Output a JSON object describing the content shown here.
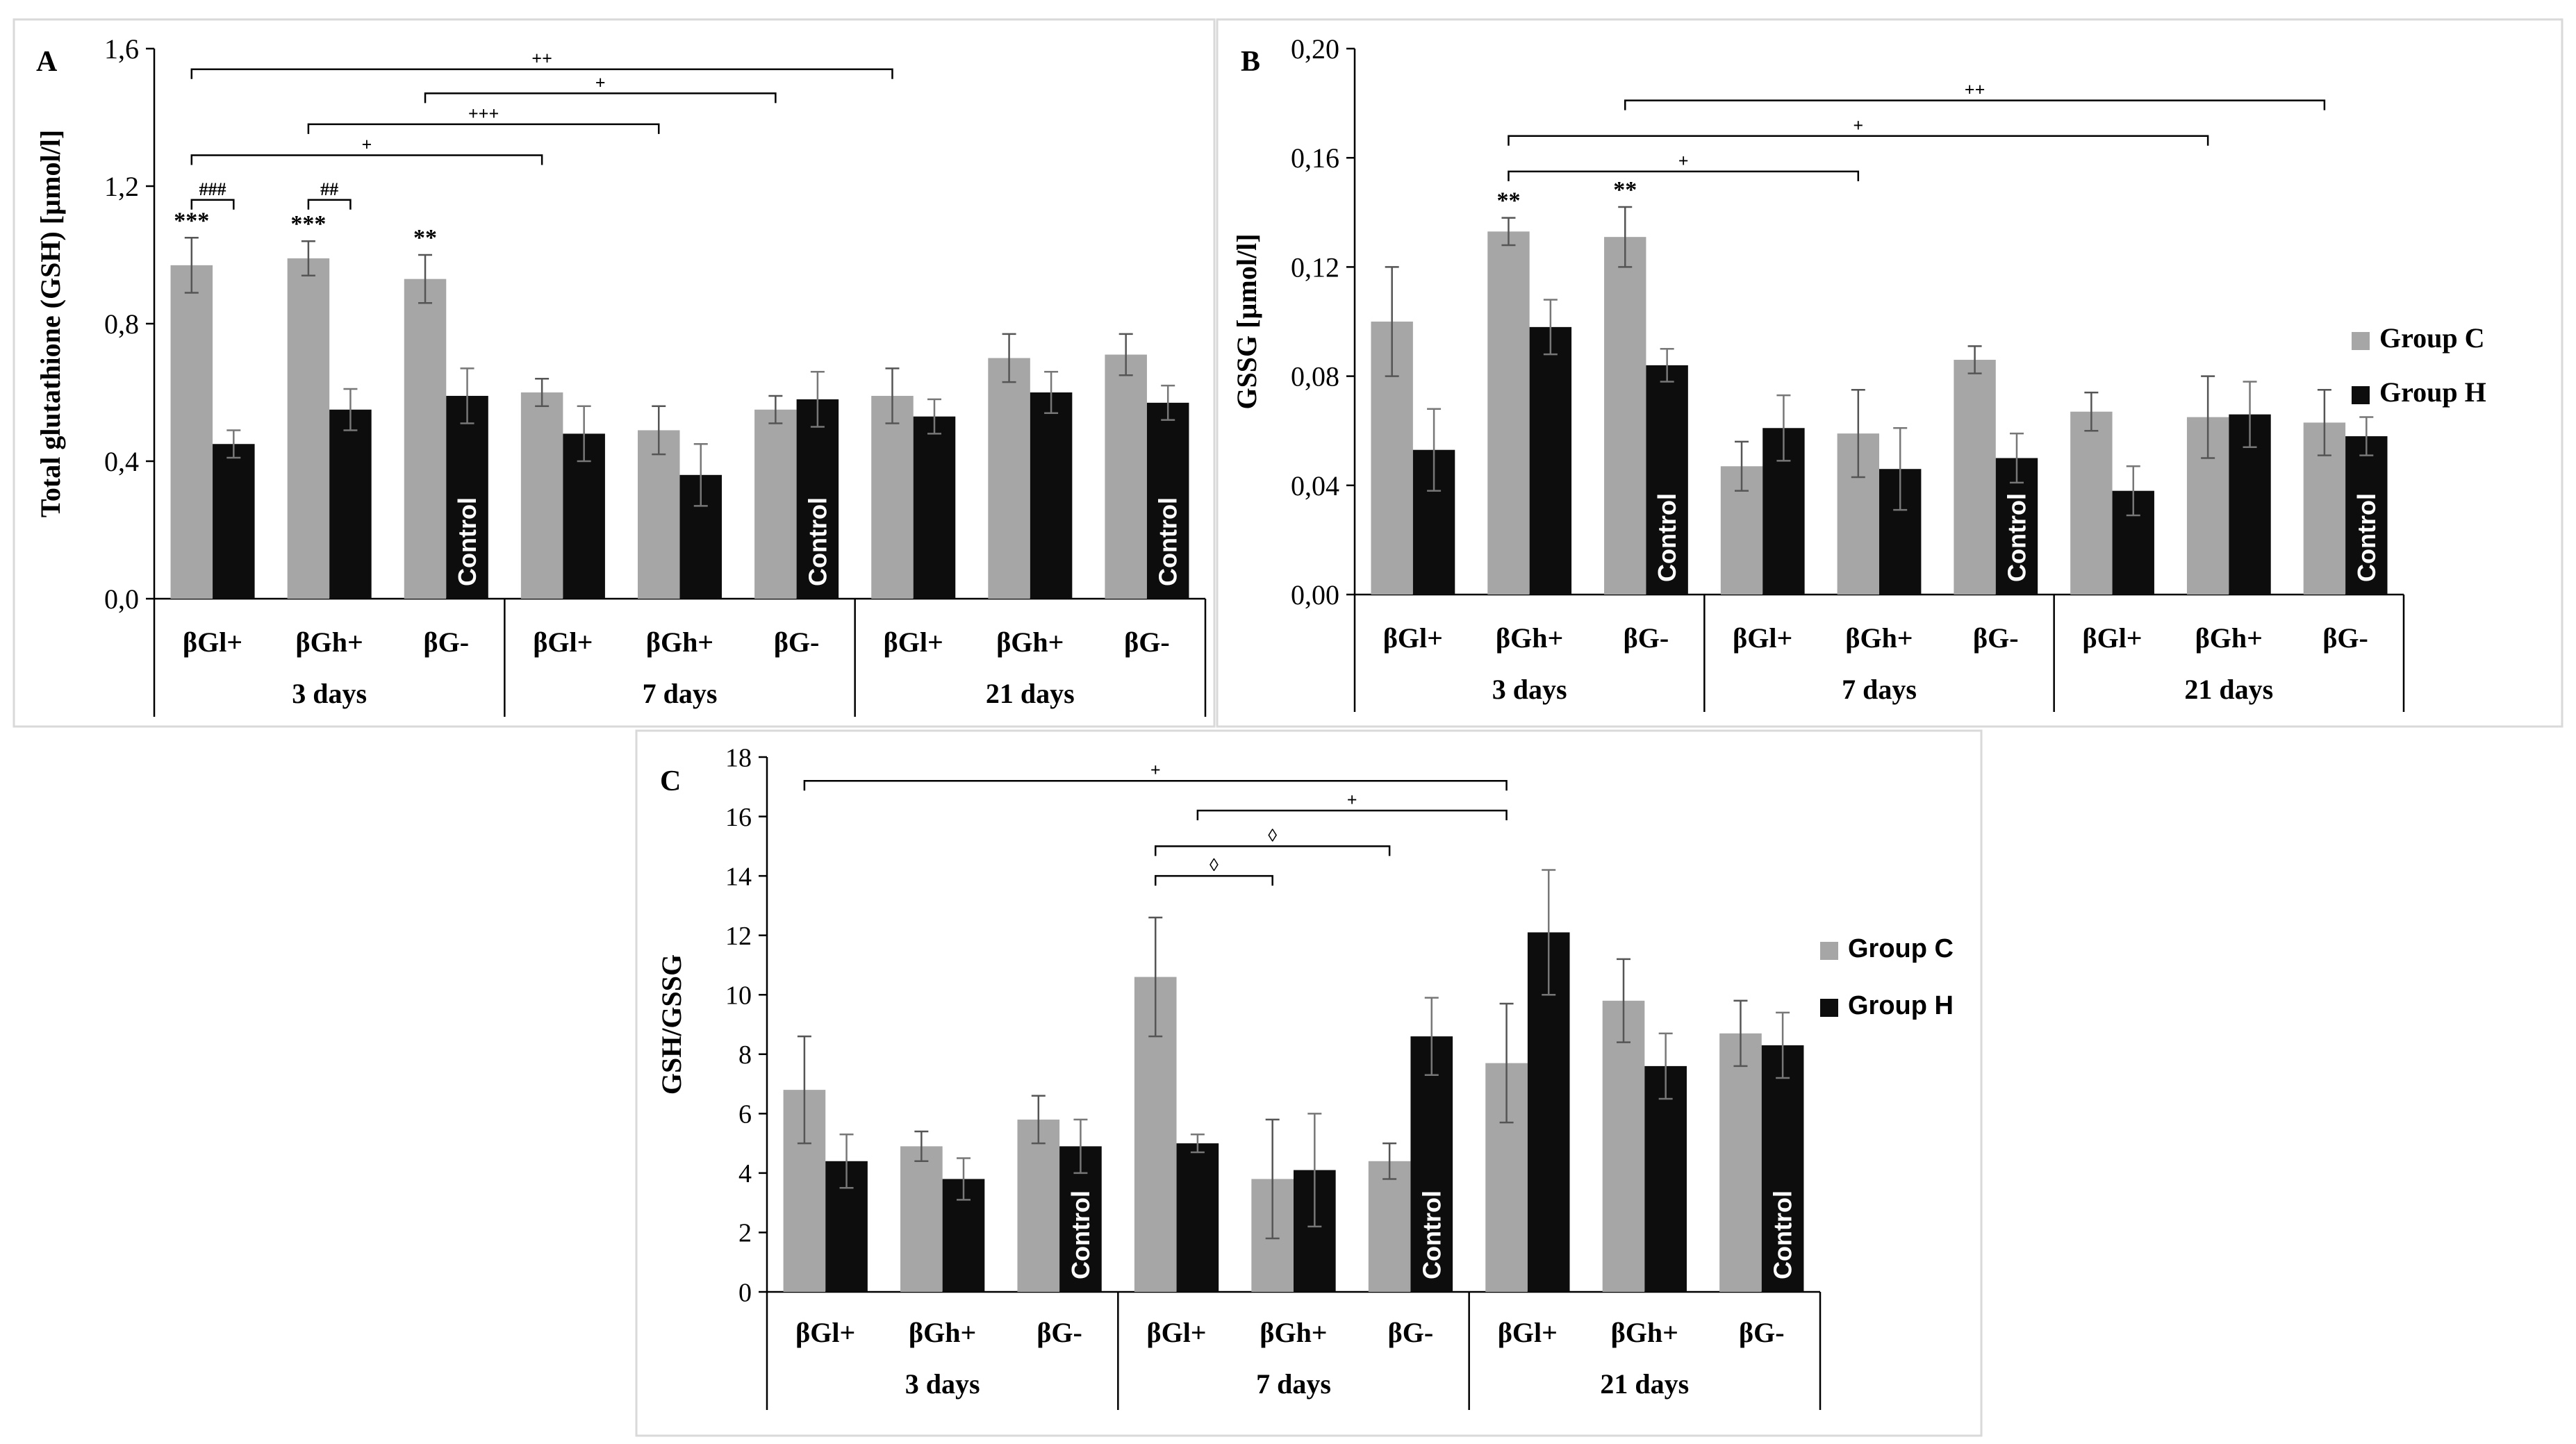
{
  "colors": {
    "group_c": "#a6a6a6",
    "group_h": "#0d0d0d",
    "axis": "#000000",
    "panel_border": "#d9d9d9"
  },
  "chart_data": [
    {
      "panel": "A",
      "type": "bar",
      "ylabel": "Total glutathione (GSH) [µmol/l]",
      "ylim": [
        0,
        1.6
      ],
      "yticks": [
        "0,0",
        "0,4",
        "0,8",
        "1,2",
        "1,6"
      ],
      "tick_values": [
        0,
        0.4,
        0.8,
        1.2,
        1.6
      ],
      "categories": [
        "βGl+",
        "βGh+",
        "βG-",
        "βGl+",
        "βGh+",
        "βG-",
        "βGl+",
        "βGh+",
        "βG-"
      ],
      "groups": [
        "3 days",
        "7 days",
        "21 days"
      ],
      "series": [
        {
          "name": "Group C",
          "values": [
            0.97,
            0.99,
            0.93,
            0.6,
            0.49,
            0.55,
            0.59,
            0.7,
            0.71
          ],
          "errors": [
            0.08,
            0.05,
            0.07,
            0.04,
            0.07,
            0.04,
            0.08,
            0.07,
            0.06
          ]
        },
        {
          "name": "Group H",
          "values": [
            0.45,
            0.55,
            0.59,
            0.48,
            0.36,
            0.58,
            0.53,
            0.6,
            0.57
          ],
          "errors": [
            0.04,
            0.06,
            0.08,
            0.08,
            0.09,
            0.08,
            0.05,
            0.06,
            0.05
          ]
        }
      ],
      "control_label": "Control",
      "control_indices": [
        2,
        5,
        8
      ],
      "star_annotations": [
        {
          "index": 0,
          "text": "***"
        },
        {
          "index": 1,
          "text": "***"
        },
        {
          "index": 2,
          "text": "**"
        }
      ],
      "brackets": [
        {
          "from": [
            0,
            0
          ],
          "to": [
            0,
            1
          ],
          "y": 1.16,
          "label": "###"
        },
        {
          "from": [
            1,
            0
          ],
          "to": [
            1,
            1
          ],
          "y": 1.16,
          "label": "##"
        },
        {
          "from": [
            0,
            0
          ],
          "to": [
            3,
            0
          ],
          "y": 1.29,
          "label": "+"
        },
        {
          "from": [
            1,
            0
          ],
          "to": [
            4,
            0
          ],
          "y": 1.38,
          "label": "+++"
        },
        {
          "from": [
            2,
            0
          ],
          "to": [
            5,
            0
          ],
          "y": 1.47,
          "label": "+"
        },
        {
          "from": [
            0,
            0
          ],
          "to": [
            6,
            0
          ],
          "y": 1.54,
          "label": "++"
        }
      ]
    },
    {
      "panel": "B",
      "type": "bar",
      "ylabel": "GSSG [µmol/l]",
      "ylim": [
        0,
        0.2
      ],
      "yticks": [
        "0,00",
        "0,04",
        "0,08",
        "0,12",
        "0,16",
        "0,20"
      ],
      "tick_values": [
        0,
        0.04,
        0.08,
        0.12,
        0.16,
        0.2
      ],
      "categories": [
        "βGl+",
        "βGh+",
        "βG-",
        "βGl+",
        "βGh+",
        "βG-",
        "βGl+",
        "βGh+",
        "βG-"
      ],
      "groups": [
        "3 days",
        "7 days",
        "21 days"
      ],
      "series": [
        {
          "name": "Group C",
          "values": [
            0.1,
            0.133,
            0.131,
            0.047,
            0.059,
            0.086,
            0.067,
            0.065,
            0.063
          ],
          "errors": [
            0.02,
            0.005,
            0.011,
            0.009,
            0.016,
            0.005,
            0.007,
            0.015,
            0.012
          ]
        },
        {
          "name": "Group H",
          "values": [
            0.053,
            0.098,
            0.084,
            0.061,
            0.046,
            0.05,
            0.038,
            0.066,
            0.058
          ],
          "errors": [
            0.015,
            0.01,
            0.006,
            0.012,
            0.015,
            0.009,
            0.009,
            0.012,
            0.007
          ]
        }
      ],
      "control_label": "Control",
      "control_indices": [
        2,
        5,
        8
      ],
      "star_annotations": [
        {
          "index": 1,
          "text": "**"
        },
        {
          "index": 2,
          "text": "**"
        }
      ],
      "brackets": [
        {
          "from": [
            1,
            0
          ],
          "to": [
            4,
            0
          ],
          "y": 0.155,
          "label": "+"
        },
        {
          "from": [
            1,
            0
          ],
          "to": [
            7,
            0
          ],
          "y": 0.168,
          "label": "+"
        },
        {
          "from": [
            2,
            0
          ],
          "to": [
            8,
            0
          ],
          "y": 0.181,
          "label": "++"
        }
      ],
      "legend": [
        "Group C",
        "Group H"
      ]
    },
    {
      "panel": "C",
      "type": "bar",
      "ylabel": "GSH/GSSG",
      "ylim": [
        0,
        18
      ],
      "yticks": [
        "0",
        "2",
        "4",
        "6",
        "8",
        "10",
        "12",
        "14",
        "16",
        "18"
      ],
      "tick_values": [
        0,
        2,
        4,
        6,
        8,
        10,
        12,
        14,
        16,
        18
      ],
      "categories": [
        "βGl+",
        "βGh+",
        "βG-",
        "βGl+",
        "βGh+",
        "βG-",
        "βGl+",
        "βGh+",
        "βG-"
      ],
      "groups": [
        "3 days",
        "7 days",
        "21 days"
      ],
      "series": [
        {
          "name": "Group C",
          "values": [
            6.8,
            4.9,
            5.8,
            10.6,
            3.8,
            4.4,
            7.7,
            9.8,
            8.7
          ],
          "errors": [
            1.8,
            0.5,
            0.8,
            2.0,
            2.0,
            0.6,
            2.0,
            1.4,
            1.1
          ]
        },
        {
          "name": "Group H",
          "values": [
            4.4,
            3.8,
            4.9,
            5.0,
            4.1,
            8.6,
            12.1,
            7.6,
            8.3
          ],
          "errors": [
            0.9,
            0.7,
            0.9,
            0.3,
            1.9,
            1.3,
            2.1,
            1.1,
            1.1
          ]
        }
      ],
      "control_label": "Control",
      "control_indices": [
        2,
        5,
        8
      ],
      "star_annotations": [],
      "brackets": [
        {
          "from": [
            3,
            0
          ],
          "to": [
            4,
            0
          ],
          "y": 14.0,
          "label": "◊"
        },
        {
          "from": [
            3,
            0
          ],
          "to": [
            5,
            0
          ],
          "y": 15.0,
          "label": "◊"
        },
        {
          "from": [
            3,
            1
          ],
          "to": [
            6,
            0
          ],
          "y": 16.2,
          "label": "+"
        },
        {
          "from": [
            0,
            0
          ],
          "to": [
            6,
            0
          ],
          "y": 17.2,
          "label": "+"
        }
      ],
      "legend": [
        "Group C",
        "Group H"
      ]
    }
  ]
}
